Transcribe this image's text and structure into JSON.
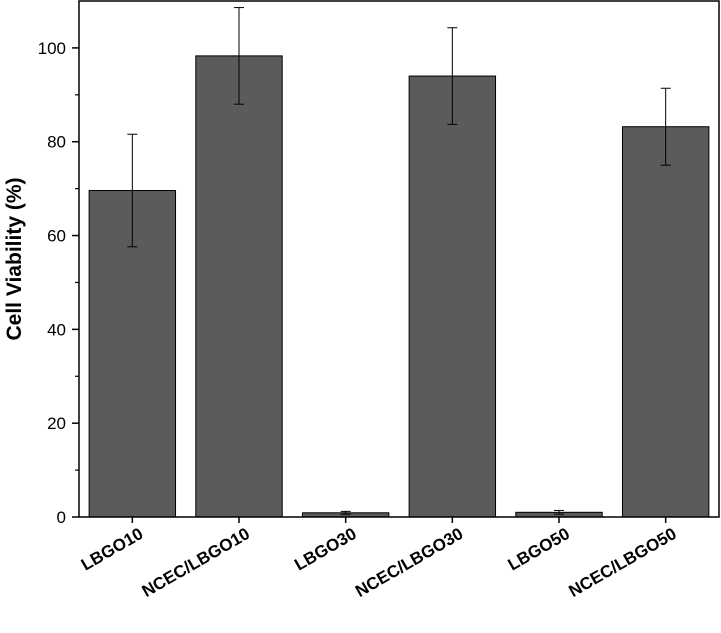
{
  "chart_data": {
    "type": "bar",
    "title": "",
    "xlabel": "",
    "ylabel": "Cell Viability (%)",
    "categories": [
      "LBGO10",
      "NCEC/LBGO10",
      "LBGO30",
      "NCEC/LBGO30",
      "LBGO50",
      "NCEC/LBGO50"
    ],
    "values": [
      69.6,
      98.3,
      0.9,
      94.0,
      1.0,
      83.2
    ],
    "errors": [
      12.0,
      10.3,
      0.3,
      10.3,
      0.4,
      8.2
    ],
    "ylim": [
      0,
      110
    ],
    "yticks": [
      0,
      20,
      40,
      60,
      80,
      100
    ],
    "ytick_labels": [
      "0",
      "20",
      "40",
      "60",
      "80",
      "100"
    ],
    "bar_color": "#5b5b5b",
    "grid": false,
    "legend": "none"
  }
}
